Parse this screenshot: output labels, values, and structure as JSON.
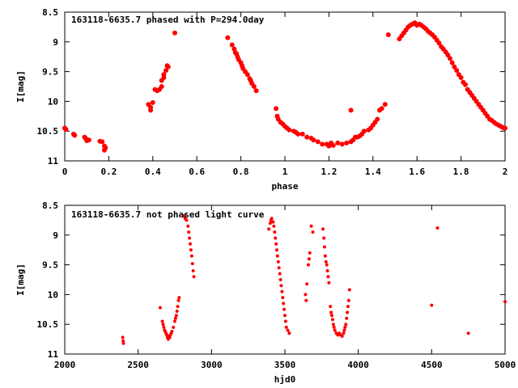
{
  "colors": {
    "points": "#ff0000",
    "frame": "#000000",
    "background": "#ffffff"
  },
  "chart_data": [
    {
      "type": "scatter",
      "title": "163118-6635.7 phased with P=294.0day",
      "xlabel": "phase",
      "ylabel": "I[mag]",
      "xlim": [
        0,
        2
      ],
      "ylim": [
        11,
        8.5
      ],
      "y_inverted": true,
      "grid": false,
      "x_ticks": [
        0,
        0.2,
        0.4,
        0.6,
        0.8,
        1,
        1.2,
        1.4,
        1.6,
        1.8,
        2
      ],
      "x_tick_labels": [
        "0",
        "0.2",
        "0.4",
        "0.6",
        "0.8",
        "1",
        "1.2",
        "1.4",
        "1.6",
        "1.8",
        "2"
      ],
      "y_ticks": [
        8.5,
        9,
        9.5,
        10,
        10.5,
        11
      ],
      "y_tick_labels": [
        "8.5",
        "9",
        "9.5",
        "10",
        "10.5",
        "11"
      ],
      "marker_size": 3,
      "points": [
        [
          0.0,
          10.45
        ],
        [
          0.005,
          10.47
        ],
        [
          0.04,
          10.55
        ],
        [
          0.045,
          10.57
        ],
        [
          0.09,
          10.6
        ],
        [
          0.095,
          10.62
        ],
        [
          0.1,
          10.66
        ],
        [
          0.11,
          10.65
        ],
        [
          0.16,
          10.67
        ],
        [
          0.17,
          10.68
        ],
        [
          0.18,
          10.75
        ],
        [
          0.18,
          10.82
        ],
        [
          0.185,
          10.78
        ],
        [
          0.38,
          10.05
        ],
        [
          0.39,
          10.1
        ],
        [
          0.39,
          10.15
        ],
        [
          0.4,
          10.02
        ],
        [
          0.41,
          9.8
        ],
        [
          0.42,
          9.82
        ],
        [
          0.43,
          9.8
        ],
        [
          0.44,
          9.75
        ],
        [
          0.44,
          9.65
        ],
        [
          0.45,
          9.6
        ],
        [
          0.45,
          9.55
        ],
        [
          0.46,
          9.48
        ],
        [
          0.465,
          9.4
        ],
        [
          0.47,
          9.42
        ],
        [
          0.5,
          8.85
        ],
        [
          0.74,
          8.93
        ],
        [
          0.76,
          9.05
        ],
        [
          0.77,
          9.12
        ],
        [
          0.775,
          9.18
        ],
        [
          0.78,
          9.2
        ],
        [
          0.785,
          9.25
        ],
        [
          0.79,
          9.3
        ],
        [
          0.8,
          9.35
        ],
        [
          0.805,
          9.4
        ],
        [
          0.81,
          9.45
        ],
        [
          0.82,
          9.5
        ],
        [
          0.83,
          9.55
        ],
        [
          0.84,
          9.62
        ],
        [
          0.845,
          9.65
        ],
        [
          0.85,
          9.7
        ],
        [
          0.86,
          9.75
        ],
        [
          0.87,
          9.82
        ],
        [
          0.96,
          10.12
        ],
        [
          0.965,
          10.25
        ],
        [
          0.97,
          10.3
        ],
        [
          0.98,
          10.35
        ],
        [
          0.99,
          10.38
        ],
        [
          1.0,
          10.42
        ],
        [
          1.01,
          10.45
        ],
        [
          1.02,
          10.48
        ],
        [
          1.04,
          10.5
        ],
        [
          1.05,
          10.52
        ],
        [
          1.06,
          10.55
        ],
        [
          1.08,
          10.55
        ],
        [
          1.1,
          10.6
        ],
        [
          1.12,
          10.62
        ],
        [
          1.13,
          10.65
        ],
        [
          1.15,
          10.68
        ],
        [
          1.17,
          10.72
        ],
        [
          1.19,
          10.72
        ],
        [
          1.2,
          10.75
        ],
        [
          1.21,
          10.7
        ],
        [
          1.22,
          10.74
        ],
        [
          1.24,
          10.7
        ],
        [
          1.26,
          10.72
        ],
        [
          1.28,
          10.7
        ],
        [
          1.3,
          10.68
        ],
        [
          1.31,
          10.65
        ],
        [
          1.32,
          10.6
        ],
        [
          1.33,
          10.6
        ],
        [
          1.34,
          10.58
        ],
        [
          1.35,
          10.55
        ],
        [
          1.36,
          10.5
        ],
        [
          1.38,
          10.48
        ],
        [
          1.39,
          10.45
        ],
        [
          1.4,
          10.4
        ],
        [
          1.41,
          10.35
        ],
        [
          1.42,
          10.3
        ],
        [
          1.43,
          10.15
        ],
        [
          1.44,
          10.12
        ],
        [
          1.455,
          10.05
        ],
        [
          1.3,
          10.15
        ],
        [
          1.47,
          8.88
        ],
        [
          1.52,
          8.95
        ],
        [
          1.53,
          8.9
        ],
        [
          1.54,
          8.85
        ],
        [
          1.55,
          8.8
        ],
        [
          1.56,
          8.75
        ],
        [
          1.57,
          8.72
        ],
        [
          1.58,
          8.7
        ],
        [
          1.59,
          8.68
        ],
        [
          1.6,
          8.72
        ],
        [
          1.61,
          8.7
        ],
        [
          1.62,
          8.72
        ],
        [
          1.63,
          8.75
        ],
        [
          1.64,
          8.78
        ],
        [
          1.65,
          8.82
        ],
        [
          1.66,
          8.85
        ],
        [
          1.67,
          8.88
        ],
        [
          1.68,
          8.92
        ],
        [
          1.69,
          8.97
        ],
        [
          1.7,
          9.02
        ],
        [
          1.71,
          9.08
        ],
        [
          1.72,
          9.12
        ],
        [
          1.73,
          9.17
        ],
        [
          1.74,
          9.22
        ],
        [
          1.75,
          9.28
        ],
        [
          1.76,
          9.35
        ],
        [
          1.77,
          9.42
        ],
        [
          1.78,
          9.48
        ],
        [
          1.79,
          9.55
        ],
        [
          1.8,
          9.6
        ],
        [
          1.81,
          9.68
        ],
        [
          1.82,
          9.72
        ],
        [
          1.83,
          9.8
        ],
        [
          1.84,
          9.85
        ],
        [
          1.85,
          9.9
        ],
        [
          1.86,
          9.95
        ],
        [
          1.87,
          10.0
        ],
        [
          1.88,
          10.05
        ],
        [
          1.89,
          10.1
        ],
        [
          1.9,
          10.15
        ],
        [
          1.91,
          10.2
        ],
        [
          1.92,
          10.25
        ],
        [
          1.93,
          10.3
        ],
        [
          1.94,
          10.32
        ],
        [
          1.95,
          10.35
        ],
        [
          1.96,
          10.38
        ],
        [
          1.97,
          10.4
        ],
        [
          1.98,
          10.42
        ],
        [
          1.99,
          10.44
        ],
        [
          2.0,
          10.45
        ]
      ]
    },
    {
      "type": "scatter",
      "title": "163118-6635.7 not phased light curve",
      "xlabel": "hjd0",
      "ylabel": "I[mag]",
      "xlim": [
        2000,
        5000
      ],
      "ylim": [
        11,
        8.5
      ],
      "y_inverted": true,
      "grid": false,
      "x_ticks": [
        2000,
        2500,
        3000,
        3500,
        4000,
        4500,
        5000
      ],
      "x_tick_labels": [
        "2000",
        "2500",
        "3000",
        "3500",
        "4000",
        "4500",
        "5000"
      ],
      "y_ticks": [
        8.5,
        9,
        9.5,
        10,
        10.5,
        11
      ],
      "y_tick_labels": [
        "8.5",
        "9",
        "9.5",
        "10",
        "10.5",
        "11"
      ],
      "marker_size": 2,
      "points": [
        [
          2395,
          10.72
        ],
        [
          2398,
          10.78
        ],
        [
          2400,
          10.82
        ],
        [
          2650,
          10.22
        ],
        [
          2665,
          10.45
        ],
        [
          2670,
          10.5
        ],
        [
          2675,
          10.55
        ],
        [
          2680,
          10.6
        ],
        [
          2685,
          10.62
        ],
        [
          2690,
          10.65
        ],
        [
          2695,
          10.68
        ],
        [
          2700,
          10.72
        ],
        [
          2705,
          10.75
        ],
        [
          2710,
          10.7
        ],
        [
          2715,
          10.72
        ],
        [
          2720,
          10.68
        ],
        [
          2725,
          10.65
        ],
        [
          2730,
          10.62
        ],
        [
          2740,
          10.55
        ],
        [
          2750,
          10.45
        ],
        [
          2755,
          10.4
        ],
        [
          2760,
          10.35
        ],
        [
          2765,
          10.28
        ],
        [
          2770,
          10.2
        ],
        [
          2775,
          10.1
        ],
        [
          2780,
          10.05
        ],
        [
          2815,
          8.68
        ],
        [
          2820,
          8.72
        ],
        [
          2830,
          8.75
        ],
        [
          2840,
          8.85
        ],
        [
          2845,
          8.95
        ],
        [
          2850,
          9.05
        ],
        [
          2855,
          9.15
        ],
        [
          2860,
          9.25
        ],
        [
          2865,
          9.35
        ],
        [
          2870,
          9.48
        ],
        [
          2875,
          9.6
        ],
        [
          2880,
          9.7
        ],
        [
          3390,
          8.9
        ],
        [
          3400,
          8.8
        ],
        [
          3405,
          8.75
        ],
        [
          3410,
          8.72
        ],
        [
          3420,
          8.78
        ],
        [
          3425,
          8.85
        ],
        [
          3430,
          8.95
        ],
        [
          3435,
          9.05
        ],
        [
          3440,
          9.15
        ],
        [
          3445,
          9.25
        ],
        [
          3450,
          9.35
        ],
        [
          3455,
          9.45
        ],
        [
          3460,
          9.55
        ],
        [
          3465,
          9.65
        ],
        [
          3470,
          9.75
        ],
        [
          3475,
          9.85
        ],
        [
          3480,
          9.95
        ],
        [
          3485,
          10.05
        ],
        [
          3490,
          10.15
        ],
        [
          3495,
          10.25
        ],
        [
          3500,
          10.35
        ],
        [
          3505,
          10.45
        ],
        [
          3510,
          10.55
        ],
        [
          3520,
          10.6
        ],
        [
          3530,
          10.65
        ],
        [
          3640,
          10.0
        ],
        [
          3645,
          10.1
        ],
        [
          3650,
          9.82
        ],
        [
          3660,
          9.5
        ],
        [
          3665,
          9.4
        ],
        [
          3670,
          9.3
        ],
        [
          3680,
          8.85
        ],
        [
          3690,
          8.95
        ],
        [
          3760,
          8.9
        ],
        [
          3765,
          9.05
        ],
        [
          3770,
          9.2
        ],
        [
          3775,
          9.35
        ],
        [
          3780,
          9.45
        ],
        [
          3785,
          9.5
        ],
        [
          3790,
          9.6
        ],
        [
          3795,
          9.7
        ],
        [
          3800,
          9.8
        ],
        [
          3810,
          10.2
        ],
        [
          3815,
          10.3
        ],
        [
          3820,
          10.35
        ],
        [
          3825,
          10.42
        ],
        [
          3830,
          10.5
        ],
        [
          3835,
          10.55
        ],
        [
          3840,
          10.6
        ],
        [
          3850,
          10.65
        ],
        [
          3860,
          10.68
        ],
        [
          3870,
          10.65
        ],
        [
          3880,
          10.68
        ],
        [
          3890,
          10.7
        ],
        [
          3900,
          10.65
        ],
        [
          3905,
          10.6
        ],
        [
          3910,
          10.55
        ],
        [
          3915,
          10.5
        ],
        [
          3920,
          10.4
        ],
        [
          3925,
          10.3
        ],
        [
          3930,
          10.2
        ],
        [
          3935,
          10.1
        ],
        [
          3940,
          9.92
        ],
        [
          4500,
          10.18
        ],
        [
          4540,
          8.88
        ],
        [
          4750,
          10.65
        ],
        [
          5000,
          10.12
        ]
      ]
    }
  ]
}
